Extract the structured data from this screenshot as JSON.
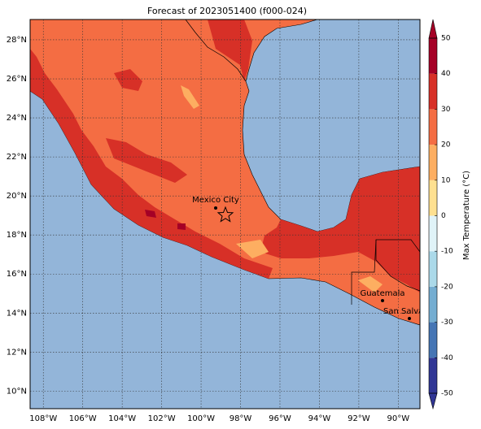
{
  "title": "Forecast of 2023051400 (f000-024)",
  "map": {
    "xlim": [
      -108.67,
      -88.9
    ],
    "ylim": [
      9.1,
      29.04
    ],
    "xticks": [
      {
        "value": -108,
        "label": "108°W"
      },
      {
        "value": -106,
        "label": "106°W"
      },
      {
        "value": -104,
        "label": "104°W"
      },
      {
        "value": -102,
        "label": "102°W"
      },
      {
        "value": -100,
        "label": "100°W"
      },
      {
        "value": -98,
        "label": "98°W"
      },
      {
        "value": -96,
        "label": "96°W"
      },
      {
        "value": -94,
        "label": "94°W"
      },
      {
        "value": -92,
        "label": "92°W"
      },
      {
        "value": -90,
        "label": "90°W"
      }
    ],
    "yticks": [
      {
        "value": 10,
        "label": "10°N"
      },
      {
        "value": 12,
        "label": "12°N"
      },
      {
        "value": 14,
        "label": "14°N"
      },
      {
        "value": 16,
        "label": "16°N"
      },
      {
        "value": 18,
        "label": "18°N"
      },
      {
        "value": 20,
        "label": "20°N"
      },
      {
        "value": 22,
        "label": "22°N"
      },
      {
        "value": 24,
        "label": "24°N"
      },
      {
        "value": 26,
        "label": "26°N"
      },
      {
        "value": 28,
        "label": "28°N"
      }
    ],
    "cities": [
      {
        "label": "Mexico City"
      },
      {
        "label": "Guatemala"
      },
      {
        "label": "San Salvador"
      }
    ]
  },
  "colorbar": {
    "label": "Max Temperature (°C)",
    "ticks": [
      -50,
      -40,
      -30,
      -20,
      -10,
      0,
      10,
      20,
      30,
      40,
      50
    ],
    "colors": [
      "#313695",
      "#4575b4",
      "#74add1",
      "#abd9e9",
      "#e0f3f8",
      "#fee090",
      "#fdae61",
      "#f46d43",
      "#d73027",
      "#a50026"
    ]
  }
}
